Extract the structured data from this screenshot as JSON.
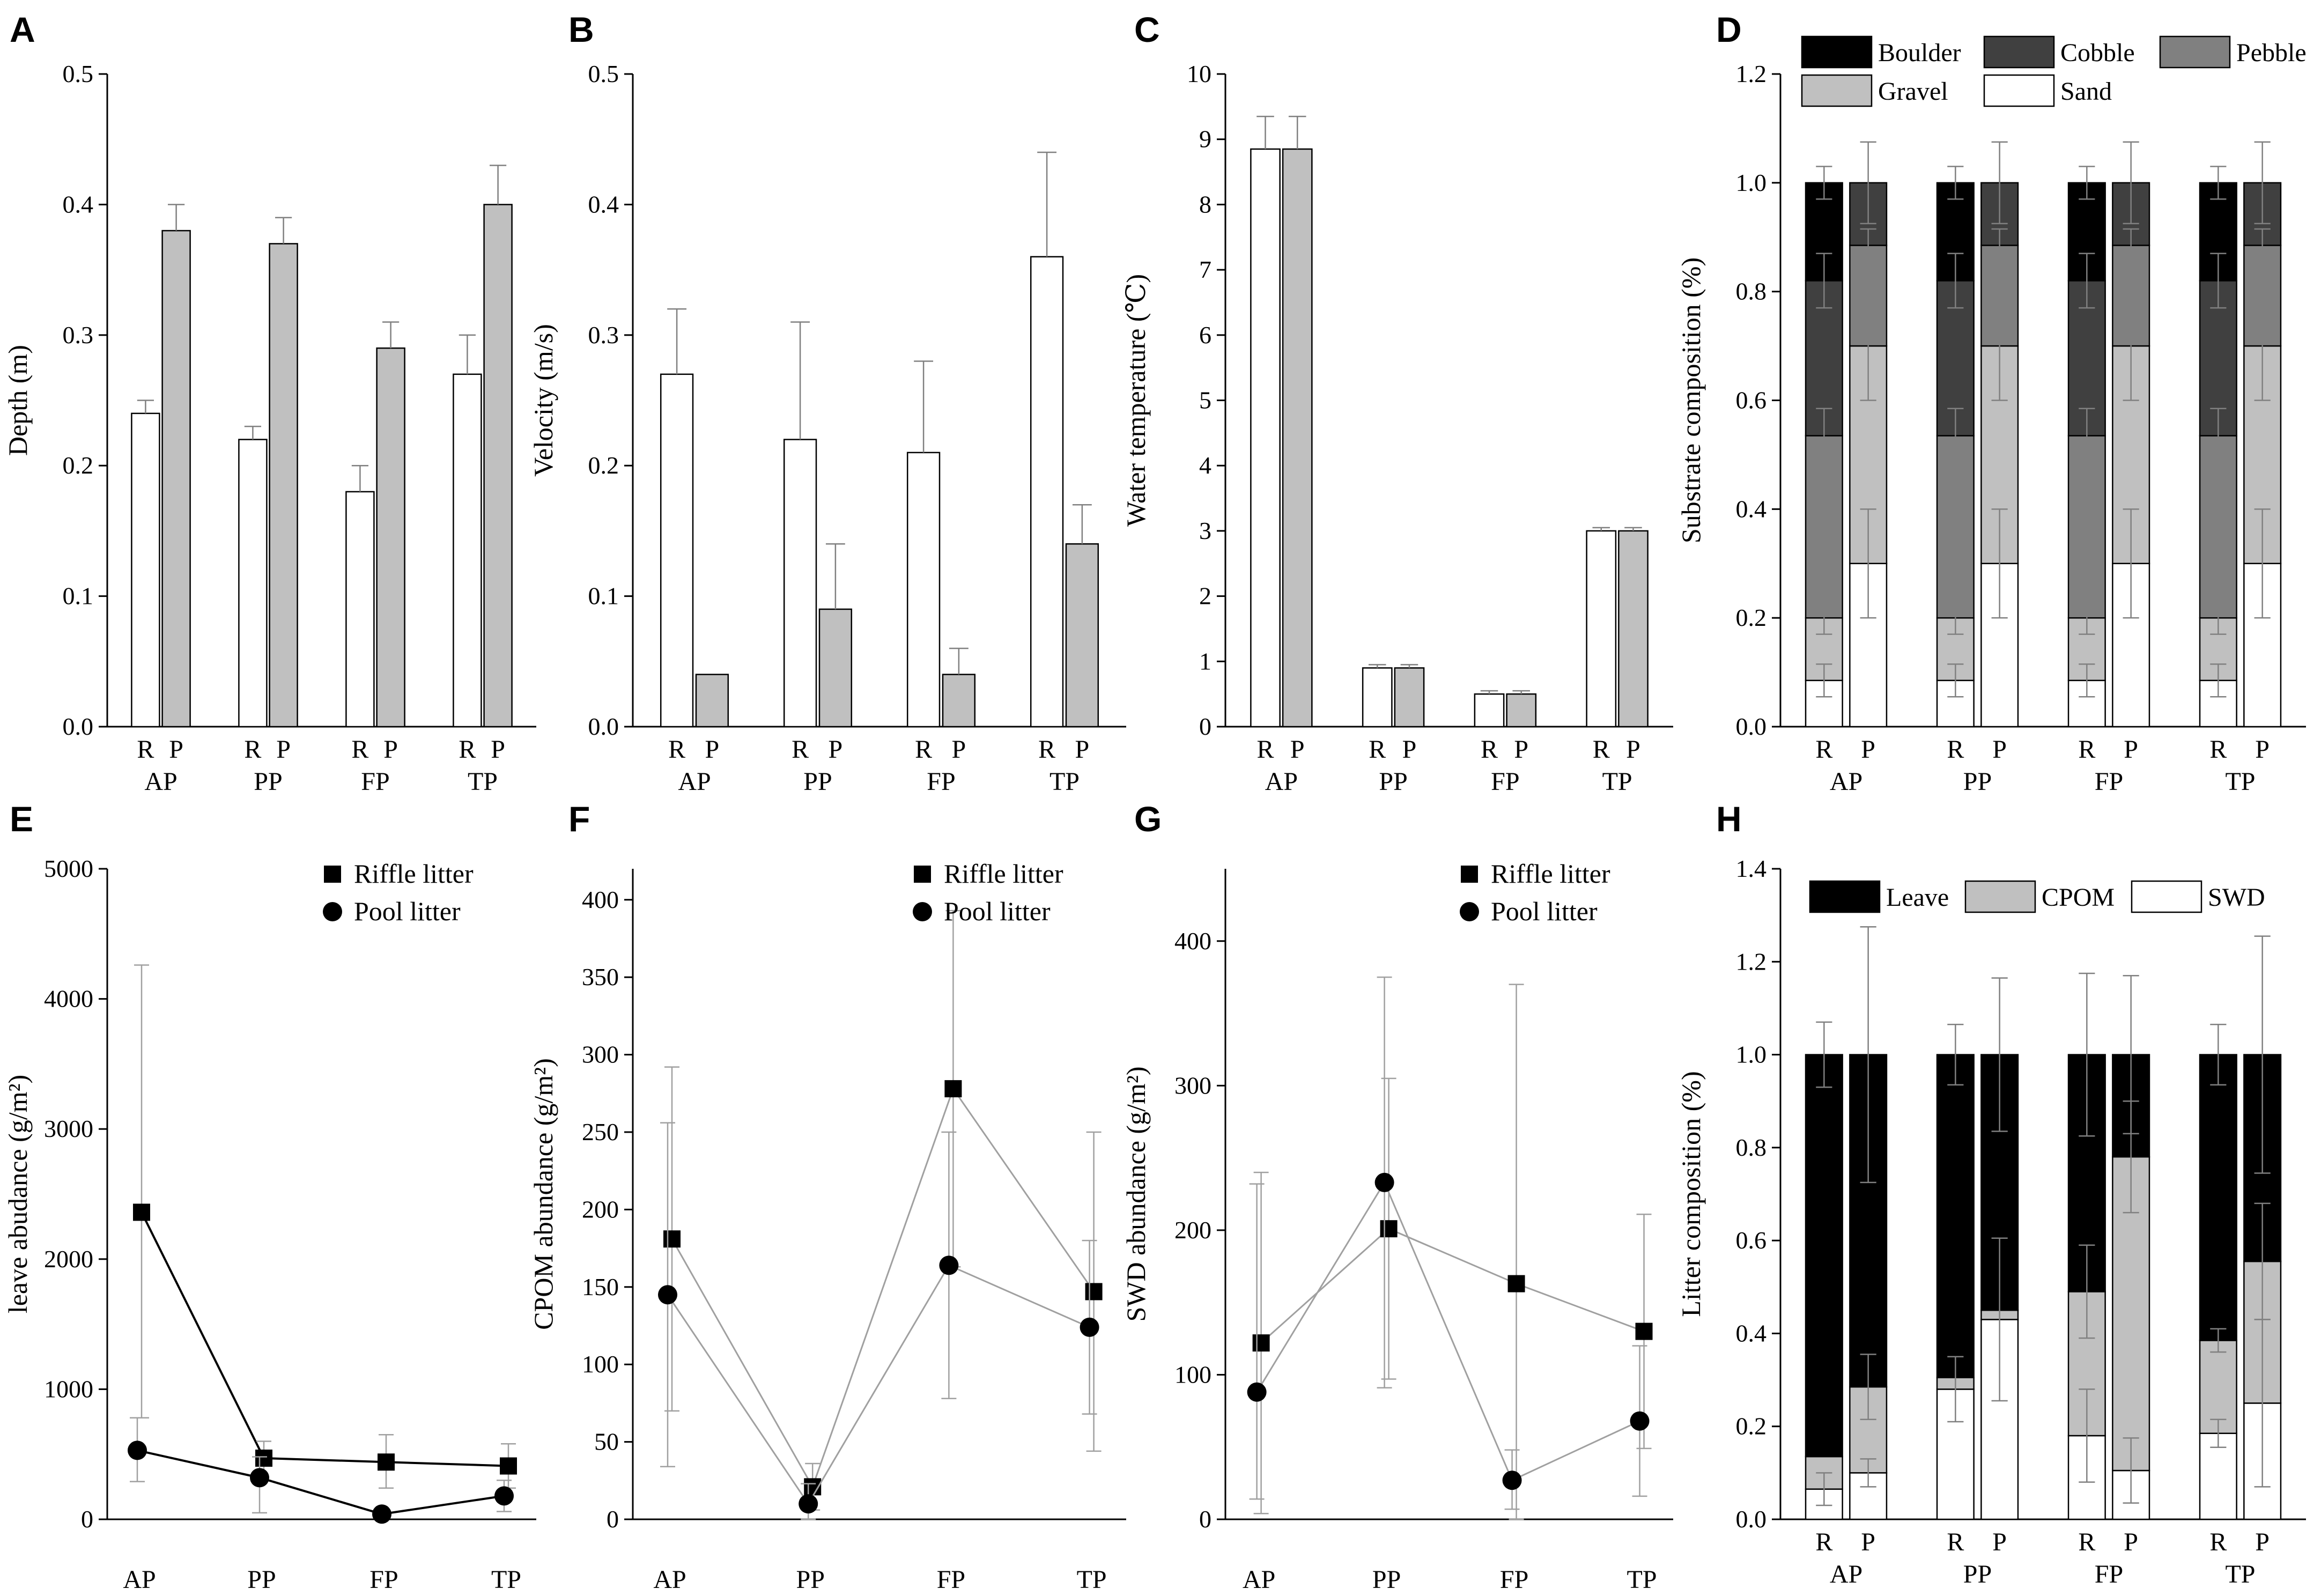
{
  "figure": {
    "colors": {
      "riffle_bar": "#ffffff",
      "pool_bar": "#c0c0c0",
      "boulder": "#000000",
      "cobble": "#404040",
      "pebble": "#808080",
      "gravel": "#c0c0c0",
      "sand": "#ffffff",
      "leave": "#000000",
      "cpom": "#c0c0c0",
      "swd": "#ffffff",
      "line": "#000000",
      "line_light": "#a0a0a0",
      "error": "#808080"
    }
  },
  "chart_data": [
    {
      "panel": "A",
      "type": "bar",
      "sites": [
        "AP",
        "PP",
        "FP",
        "TP"
      ],
      "subcategories": [
        "R",
        "P"
      ],
      "series": [
        {
          "name": "R",
          "values": [
            0.24,
            0.22,
            0.18,
            0.27
          ],
          "errors": [
            0.01,
            0.01,
            0.02,
            0.03
          ]
        },
        {
          "name": "P",
          "values": [
            0.38,
            0.37,
            0.29,
            0.4
          ],
          "errors": [
            0.02,
            0.02,
            0.02,
            0.03
          ]
        }
      ],
      "ylabel": "Depth (m)",
      "ylim": [
        0,
        0.5
      ],
      "yticks": [
        "0.0",
        "0.1",
        "0.2",
        "0.3",
        "0.4",
        "0.5"
      ]
    },
    {
      "panel": "B",
      "type": "bar",
      "sites": [
        "AP",
        "PP",
        "FP",
        "TP"
      ],
      "subcategories": [
        "R",
        "P"
      ],
      "series": [
        {
          "name": "R",
          "values": [
            0.27,
            0.22,
            0.21,
            0.36
          ],
          "errors": [
            0.05,
            0.09,
            0.07,
            0.08
          ]
        },
        {
          "name": "P",
          "values": [
            0.04,
            0.09,
            0.04,
            0.14
          ],
          "errors": [
            0,
            0.05,
            0.02,
            0.03
          ]
        }
      ],
      "ylabel": "Velocity (m/s)",
      "ylim": [
        0,
        0.5
      ],
      "yticks": [
        "0.0",
        "0.1",
        "0.2",
        "0.3",
        "0.4",
        "0.5"
      ]
    },
    {
      "panel": "C",
      "type": "bar",
      "sites": [
        "AP",
        "PP",
        "FP",
        "TP"
      ],
      "subcategories": [
        "R",
        "P"
      ],
      "series": [
        {
          "name": "R",
          "values": [
            8.85,
            0.9,
            0.5,
            3.0
          ],
          "errors": [
            0.5,
            0.05,
            0.05,
            0.05
          ]
        },
        {
          "name": "P",
          "values": [
            8.85,
            0.9,
            0.5,
            3.0
          ],
          "errors": [
            0.5,
            0.05,
            0.05,
            0.05
          ]
        }
      ],
      "ylabel": "Water temperature (℃)",
      "ylim": [
        0,
        10
      ],
      "yticks": [
        "0",
        "1",
        "2",
        "3",
        "4",
        "5",
        "6",
        "7",
        "8",
        "9",
        "10"
      ]
    },
    {
      "panel": "D",
      "type": "bar",
      "stacked": true,
      "sites": [
        "AP",
        "PP",
        "FP",
        "TP"
      ],
      "subcategories": [
        "R",
        "P"
      ],
      "stack_order": [
        "Sand",
        "Gravel",
        "Pebble",
        "Cobble",
        "Boulder"
      ],
      "legend": [
        "Boulder",
        "Cobble",
        "Pebble",
        "Gravel",
        "Sand"
      ],
      "R": {
        "Sand": 0.085,
        "Gravel": 0.115,
        "Pebble": 0.335,
        "Cobble": 0.285,
        "Boulder": 0.18
      },
      "P": {
        "Sand": 0.3,
        "Gravel": 0.4,
        "Pebble": 0.185,
        "Cobble": 0.115,
        "Boulder": 0.0
      },
      "R_errors": {
        "Sand": 0.03,
        "Gravel": 0.03,
        "Pebble": 0.05,
        "Cobble": 0.05,
        "Boulder": 0.03
      },
      "P_errors": {
        "Sand": 0.1,
        "Gravel": 0.1,
        "Pebble": 0.03,
        "Cobble": 0.075
      },
      "ylabel": "Substrate composition (%)",
      "ylim": [
        0,
        1.2
      ],
      "yticks": [
        "0.0",
        "0.2",
        "0.4",
        "0.6",
        "0.8",
        "1.0",
        "1.2"
      ]
    },
    {
      "panel": "E",
      "type": "line",
      "x": [
        "AP",
        "PP",
        "FP",
        "TP"
      ],
      "series": [
        {
          "name": "Riffle litter",
          "marker": "square",
          "values": [
            2360,
            470,
            440,
            410
          ],
          "err_hi": [
            4260,
            600,
            650,
            580
          ],
          "err_lo": [
            780,
            300,
            240,
            240
          ]
        },
        {
          "name": "Pool litter",
          "marker": "circle",
          "values": [
            530,
            320,
            40,
            180
          ],
          "err_hi": [
            780,
            480,
            60,
            300
          ],
          "err_lo": [
            290,
            50,
            20,
            60
          ]
        }
      ],
      "ylabel": "leave abudance (g/m²)",
      "ylim": [
        0,
        5000
      ],
      "yticks": [
        "0",
        "1000",
        "2000",
        "3000",
        "4000",
        "5000"
      ],
      "legend_position": "top-right"
    },
    {
      "panel": "F",
      "type": "line",
      "x": [
        "AP",
        "PP",
        "FP",
        "TP"
      ],
      "series": [
        {
          "name": "Riffle litter",
          "marker": "square",
          "values": [
            181,
            21,
            278,
            147
          ],
          "err_hi": [
            292,
            36,
            393,
            250
          ],
          "err_lo": [
            70,
            6,
            163,
            44
          ]
        },
        {
          "name": "Pool litter",
          "marker": "circle",
          "values": [
            145,
            10,
            164,
            124
          ],
          "err_hi": [
            256,
            23,
            250,
            180
          ],
          "err_lo": [
            34,
            0,
            78,
            68
          ]
        }
      ],
      "ylabel": "CPOM abundance (g/m²)",
      "ylim": [
        0,
        420
      ],
      "yticks": [
        "0",
        "50",
        "100",
        "150",
        "200",
        "250",
        "300",
        "350",
        "400"
      ],
      "legend_position": "top-right"
    },
    {
      "panel": "G",
      "type": "line",
      "x": [
        "AP",
        "PP",
        "FP",
        "TP"
      ],
      "series": [
        {
          "name": "Riffle litter",
          "marker": "square",
          "values": [
            122,
            201,
            163,
            130
          ],
          "err_hi": [
            240,
            305,
            370,
            211
          ],
          "err_lo": [
            4,
            97,
            0,
            49
          ]
        },
        {
          "name": "Pool litter",
          "marker": "circle",
          "values": [
            88,
            233,
            27,
            68
          ],
          "err_hi": [
            232,
            375,
            48,
            120
          ],
          "err_lo": [
            14,
            91,
            7,
            16
          ]
        }
      ],
      "ylabel": "SWD abundance (g/m²)",
      "ylim": [
        0,
        450
      ],
      "yticks": [
        "0",
        "100",
        "200",
        "300",
        "400"
      ],
      "legend_position": "top-right"
    },
    {
      "panel": "H",
      "type": "bar",
      "stacked": true,
      "sites": [
        "AP",
        "PP",
        "FP",
        "TP"
      ],
      "subcategories": [
        "R",
        "P"
      ],
      "stack_order": [
        "SWD",
        "CPOM",
        "Leave"
      ],
      "legend": [
        "Leave",
        "CPOM",
        "SWD"
      ],
      "bars": {
        "AP": {
          "R": {
            "SWD": 0.065,
            "CPOM": 0.07,
            "Leave": 0.865
          },
          "P": {
            "SWD": 0.1,
            "CPOM": 0.185,
            "Leave": 0.715
          }
        },
        "PP": {
          "R": {
            "SWD": 0.28,
            "CPOM": 0.025,
            "Leave": 0.695
          },
          "P": {
            "SWD": 0.43,
            "CPOM": 0.02,
            "Leave": 0.55
          }
        },
        "FP": {
          "R": {
            "SWD": 0.18,
            "CPOM": 0.31,
            "Leave": 0.51
          },
          "P": {
            "SWD": 0.105,
            "CPOM": 0.675,
            "Leave": 0.22
          }
        },
        "TP": {
          "R": {
            "SWD": 0.185,
            "CPOM": 0.2,
            "Leave": 0.615
          },
          "P": {
            "SWD": 0.25,
            "CPOM": 0.305,
            "Leave": 0.445
          }
        }
      },
      "errors": {
        "AP": {
          "R": {
            "SWD": 0.035,
            "Leave": 0.07
          },
          "P": {
            "SWD": 0.03,
            "CPOM": 0.07,
            "Leave": 0.275
          }
        },
        "PP": {
          "R": {
            "SWD": 0.07,
            "Leave": 0.065
          },
          "P": {
            "SWD": 0.175,
            "Leave": 0.165
          }
        },
        "FP": {
          "R": {
            "SWD": 0.1,
            "CPOM": 0.1,
            "Leave": 0.175
          },
          "P": {
            "SWD": 0.07,
            "CPOM": 0.12,
            "Leave": 0.17
          }
        },
        "TP": {
          "R": {
            "SWD": 0.03,
            "CPOM": 0.025,
            "Leave": 0.065
          },
          "P": {
            "SWD": 0.18,
            "CPOM": 0.125,
            "Leave": 0.255
          }
        }
      },
      "ylabel": "Litter composition (%)",
      "ylim": [
        0,
        1.4
      ],
      "yticks": [
        "0.0",
        "0.2",
        "0.4",
        "0.6",
        "0.8",
        "1.0",
        "1.2",
        "1.4"
      ]
    }
  ]
}
